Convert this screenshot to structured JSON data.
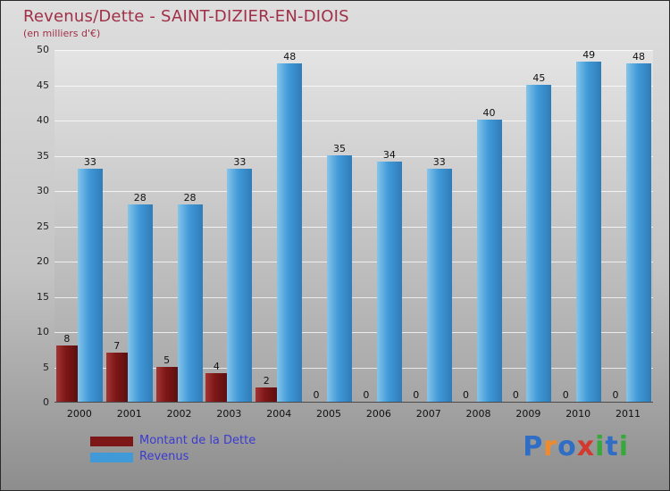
{
  "header": {
    "title": "Revenus/Dette - SAINT-DIZIER-EN-DIOIS",
    "subtitle": "(en milliers d'€)"
  },
  "chart_data": {
    "type": "bar",
    "title": "Revenus/Dette - SAINT-DIZIER-EN-DIOIS",
    "subtitle": "(en milliers d'€)",
    "categories": [
      "2000",
      "2001",
      "2002",
      "2003",
      "2004",
      "2005",
      "2006",
      "2007",
      "2008",
      "2009",
      "2010",
      "2011"
    ],
    "series": [
      {
        "name": "Montant de la Dette",
        "color": "#7d1717",
        "values": [
          8,
          7,
          5,
          4,
          2,
          0,
          0,
          0,
          0,
          0,
          0,
          0
        ]
      },
      {
        "name": "Revenus",
        "color": "#419ad8",
        "values": [
          33,
          28,
          28,
          33,
          48,
          35,
          34,
          33,
          40,
          45,
          49,
          48
        ]
      }
    ],
    "ylim": [
      0,
      50
    ],
    "ytick_step": 5,
    "grid": true,
    "legend_position": "bottom-left"
  },
  "legend": {
    "items": [
      {
        "label": "Montant de la Dette",
        "color": "#7d1717"
      },
      {
        "label": "Revenus",
        "color": "#419ad8"
      }
    ]
  },
  "logo": {
    "name": "Proxiti",
    "letters": [
      {
        "char": "P",
        "color": "#2f6ec4"
      },
      {
        "char": "r",
        "color": "#ef8b2c"
      },
      {
        "char": "o",
        "color": "#2f6ec4"
      },
      {
        "char": "x",
        "color": "#d23a2e"
      },
      {
        "char": "i",
        "color": "#37a93c"
      },
      {
        "char": "t",
        "color": "#2f6ec4"
      },
      {
        "char": "i",
        "color": "#37a93c"
      }
    ]
  }
}
